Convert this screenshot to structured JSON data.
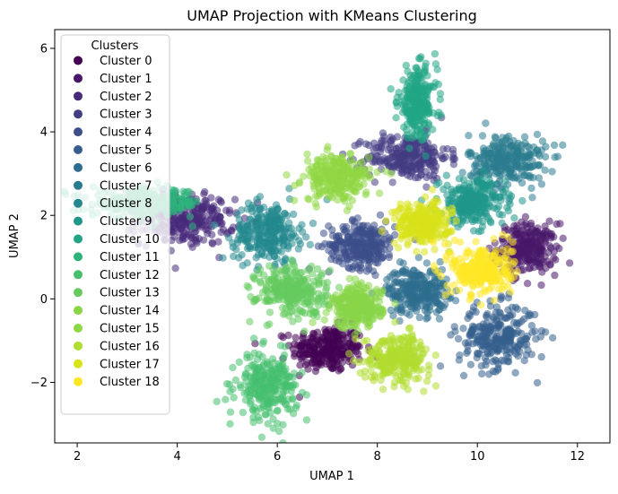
{
  "chart_data": {
    "type": "scatter",
    "title": "UMAP Projection with KMeans Clustering",
    "xlabel": "UMAP 1",
    "ylabel": "UMAP 2",
    "xlim": [
      1.55,
      12.65
    ],
    "ylim": [
      -3.45,
      6.45
    ],
    "xticks": [
      2,
      4,
      6,
      8,
      10,
      12
    ],
    "yticks": [
      -2,
      0,
      2,
      4,
      6
    ],
    "grid": false,
    "legend": {
      "title": "Clusters",
      "placement": "top-left"
    },
    "series": [
      {
        "name": "Cluster 0",
        "color": "#440154",
        "center": [
          7.0,
          -1.2
        ],
        "spread": [
          0.65,
          0.5
        ]
      },
      {
        "name": "Cluster 1",
        "color": "#481769",
        "center": [
          11.0,
          1.2
        ],
        "spread": [
          0.55,
          0.55
        ]
      },
      {
        "name": "Cluster 2",
        "color": "#472a7a",
        "center": [
          4.2,
          1.9
        ],
        "spread": [
          0.85,
          0.55
        ]
      },
      {
        "name": "Cluster 3",
        "color": "#433d84",
        "center": [
          8.6,
          3.4
        ],
        "spread": [
          0.75,
          0.5
        ]
      },
      {
        "name": "Cluster 4",
        "color": "#3d4e8a",
        "center": [
          7.7,
          1.3
        ],
        "spread": [
          0.6,
          0.5
        ]
      },
      {
        "name": "Cluster 5",
        "color": "#355e8d",
        "center": [
          10.4,
          -0.9
        ],
        "spread": [
          0.7,
          0.7
        ]
      },
      {
        "name": "Cluster 6",
        "color": "#2e6d8e",
        "center": [
          8.8,
          0.2
        ],
        "spread": [
          0.55,
          0.5
        ]
      },
      {
        "name": "Cluster 7",
        "color": "#297b8e",
        "center": [
          10.6,
          3.3
        ],
        "spread": [
          0.7,
          0.6
        ]
      },
      {
        "name": "Cluster 8",
        "color": "#23898e",
        "center": [
          5.8,
          1.6
        ],
        "spread": [
          0.6,
          0.65
        ]
      },
      {
        "name": "Cluster 9",
        "color": "#1f978b",
        "center": [
          9.9,
          2.3
        ],
        "spread": [
          0.6,
          0.5
        ]
      },
      {
        "name": "Cluster 10",
        "color": "#21a585",
        "center": [
          8.8,
          4.7
        ],
        "spread": [
          0.35,
          0.75
        ]
      },
      {
        "name": "Cluster 11",
        "color": "#2eb37c",
        "center": [
          3.4,
          2.3
        ],
        "spread": [
          1.0,
          0.3
        ]
      },
      {
        "name": "Cluster 12",
        "color": "#46c06f",
        "center": [
          5.8,
          -2.1
        ],
        "spread": [
          0.55,
          0.7
        ]
      },
      {
        "name": "Cluster 13",
        "color": "#65cb5e",
        "center": [
          6.3,
          0.2
        ],
        "spread": [
          0.65,
          0.55
        ]
      },
      {
        "name": "Cluster 14",
        "color": "#89d548",
        "center": [
          7.6,
          -0.2
        ],
        "spread": [
          0.45,
          0.45
        ]
      },
      {
        "name": "Cluster 15",
        "color": "#8fd744",
        "center": [
          7.2,
          2.9
        ],
        "spread": [
          0.6,
          0.5
        ]
      },
      {
        "name": "Cluster 16",
        "color": "#b0dd2f",
        "center": [
          8.4,
          -1.4
        ],
        "spread": [
          0.6,
          0.5
        ]
      },
      {
        "name": "Cluster 17",
        "color": "#d8e219",
        "center": [
          8.9,
          1.8
        ],
        "spread": [
          0.5,
          0.45
        ]
      },
      {
        "name": "Cluster 18",
        "color": "#fde725",
        "center": [
          10.1,
          0.7
        ],
        "spread": [
          0.55,
          0.55
        ]
      }
    ]
  }
}
